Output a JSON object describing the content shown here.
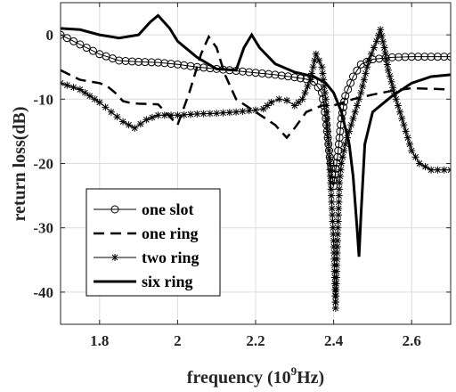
{
  "chart_data": {
    "type": "line",
    "xlabel_main": "frequency (10",
    "xlabel_sup": "9",
    "xlabel_tail": "Hz)",
    "ylabel": "return loss(dB)",
    "xlim": [
      1.7,
      2.7
    ],
    "ylim": [
      -45,
      5
    ],
    "xticks": [
      1.8,
      2.0,
      2.2,
      2.4,
      2.6
    ],
    "xtick_labels": [
      "1.8",
      "2",
      "2.2",
      "2.4",
      "2.6"
    ],
    "yticks": [
      0,
      -10,
      -20,
      -30,
      -40
    ],
    "ytick_labels": [
      "0",
      "-10",
      "-20",
      "-30",
      "-40"
    ],
    "grid": true,
    "legend_position": "lower-left",
    "series": [
      {
        "name": "one slot",
        "style": "circle-marker",
        "x": [
          1.7,
          1.75,
          1.8,
          1.85,
          1.9,
          1.95,
          2.0,
          2.05,
          2.1,
          2.15,
          2.2,
          2.25,
          2.3,
          2.33,
          2.35,
          2.37,
          2.38,
          2.39,
          2.4,
          2.41,
          2.42,
          2.43,
          2.45,
          2.47,
          2.5,
          2.55,
          2.6,
          2.65,
          2.7
        ],
        "y": [
          0,
          -1.5,
          -3,
          -4,
          -4.2,
          -4.3,
          -4.6,
          -5,
          -5.3,
          -5.6,
          -5.9,
          -6.2,
          -6.6,
          -6.9,
          -7.3,
          -9,
          -13,
          -19,
          -23.5,
          -19,
          -13,
          -9.5,
          -6.5,
          -4.6,
          -3.8,
          -3.5,
          -3.4,
          -3.4,
          -3.4
        ]
      },
      {
        "name": "one ring",
        "style": "dashed",
        "x": [
          1.7,
          1.75,
          1.8,
          1.82,
          1.84,
          1.86,
          1.88,
          1.9,
          1.95,
          2.0,
          2.03,
          2.06,
          2.08,
          2.1,
          2.12,
          2.15,
          2.2,
          2.25,
          2.28,
          2.3,
          2.33,
          2.35,
          2.37,
          2.4,
          2.45,
          2.5,
          2.55,
          2.6,
          2.65,
          2.7
        ],
        "y": [
          -5.5,
          -7,
          -7.5,
          -8,
          -9,
          -10.3,
          -10.6,
          -10.7,
          -10.8,
          -14,
          -9,
          -3,
          -0.3,
          -2,
          -6,
          -10,
          -12,
          -14,
          -16,
          -14.5,
          -12,
          -11.5,
          -11,
          -11,
          -10,
          -9.3,
          -8.7,
          -8.3,
          -8.4,
          -8.5
        ]
      },
      {
        "name": "two ring",
        "style": "star-marker",
        "x": [
          1.7,
          1.75,
          1.8,
          1.83,
          1.86,
          1.89,
          1.92,
          1.95,
          2.0,
          2.05,
          2.1,
          2.15,
          2.2,
          2.22,
          2.24,
          2.26,
          2.28,
          2.3,
          2.32,
          2.34,
          2.355,
          2.37,
          2.38,
          2.39,
          2.4,
          2.405,
          2.41,
          2.415,
          2.42,
          2.43,
          2.45,
          2.47,
          2.49,
          2.51,
          2.52,
          2.53,
          2.54,
          2.56,
          2.58,
          2.6,
          2.62,
          2.65,
          2.7
        ],
        "y": [
          -7.5,
          -8.5,
          -10.5,
          -12,
          -13.5,
          -14.5,
          -13.2,
          -12.5,
          -12.5,
          -12.3,
          -12.2,
          -12,
          -11.7,
          -11.5,
          -10.5,
          -10,
          -10.2,
          -11,
          -10,
          -7,
          -3,
          -5,
          -10,
          -20,
          -32,
          -42.5,
          -32,
          -23,
          -20,
          -17,
          -13,
          -9,
          -4,
          -1,
          0.8,
          -2,
          -5.5,
          -10,
          -14,
          -18,
          -20,
          -21,
          -21
        ]
      },
      {
        "name": "six ring",
        "style": "solid",
        "x": [
          1.7,
          1.75,
          1.8,
          1.85,
          1.9,
          1.93,
          1.95,
          1.98,
          2.0,
          2.05,
          2.1,
          2.15,
          2.17,
          2.19,
          2.21,
          2.25,
          2.3,
          2.35,
          2.38,
          2.4,
          2.42,
          2.44,
          2.45,
          2.46,
          2.465,
          2.47,
          2.48,
          2.5,
          2.55,
          2.6,
          2.65,
          2.7
        ],
        "y": [
          1,
          0.8,
          0,
          -0.5,
          0,
          2,
          3,
          1,
          -1,
          -3.5,
          -5.3,
          -5.5,
          -2,
          0,
          -2,
          -4.5,
          -5.8,
          -6.5,
          -7.5,
          -9,
          -12,
          -17,
          -22,
          -30,
          -34.5,
          -28,
          -17,
          -12,
          -9.5,
          -7.5,
          -6.5,
          -6.2
        ]
      }
    ]
  }
}
